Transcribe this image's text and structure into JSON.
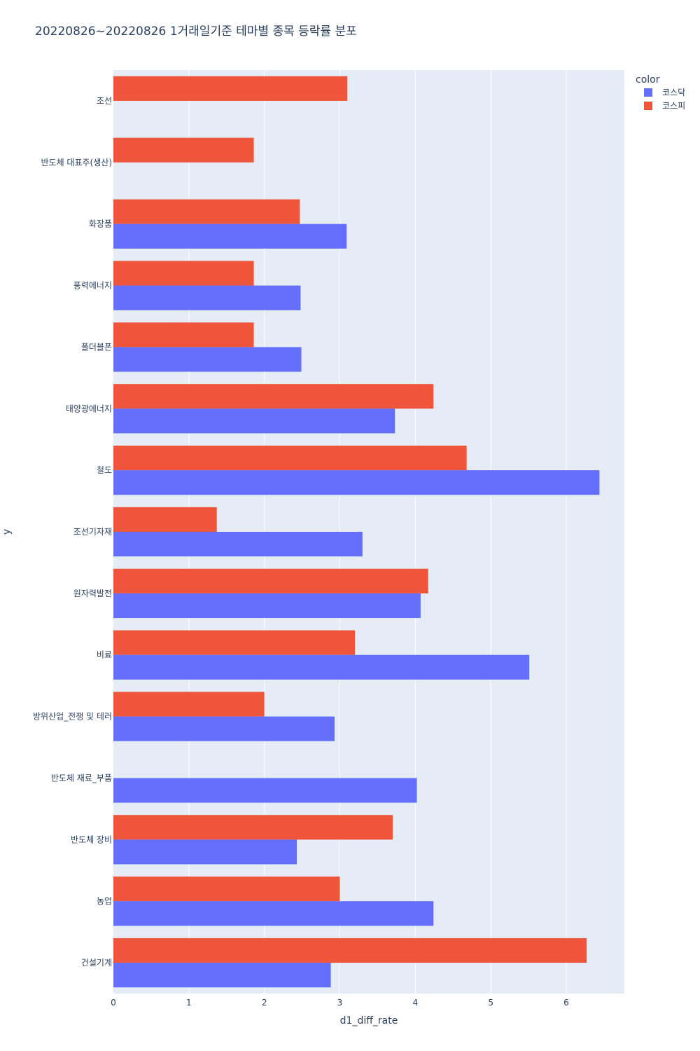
{
  "chart_data": {
    "type": "bar",
    "orientation": "horizontal",
    "title": "20220826~20220826 1거래일기준 테마별 종목 등락률 분포",
    "xlabel": "d1_diff_rate",
    "ylabel": "y",
    "xlim": [
      0,
      6.77
    ],
    "xticks": [
      0,
      1,
      2,
      3,
      4,
      5,
      6
    ],
    "grid": true,
    "legend_title": "color",
    "legend_position": "top-right",
    "categories": [
      "조선",
      "반도체 대표주(생산)",
      "화장품",
      "풍력에너지",
      "폴더블폰",
      "태양광에너지",
      "철도",
      "조선기자재",
      "원자력발전",
      "비료",
      "방위산업_전쟁 및 테러",
      "반도체 재료_부품",
      "반도체 장비",
      "농업",
      "건설기계"
    ],
    "series": [
      {
        "name": "코스닥",
        "color": "#636efa",
        "values": [
          null,
          null,
          3.09,
          2.48,
          2.49,
          3.73,
          6.44,
          3.3,
          4.07,
          5.51,
          2.93,
          4.02,
          2.43,
          4.24,
          2.88
        ]
      },
      {
        "name": "코스피",
        "color": "#ef553b",
        "values": [
          3.1,
          1.86,
          2.47,
          1.86,
          1.86,
          4.24,
          4.68,
          1.37,
          4.17,
          3.2,
          2.0,
          null,
          3.7,
          3.0,
          6.27
        ]
      }
    ],
    "colors": {
      "plot_bg": "#e5ecf6",
      "grid": "#ffffff",
      "text": "#2a3f5f"
    }
  }
}
